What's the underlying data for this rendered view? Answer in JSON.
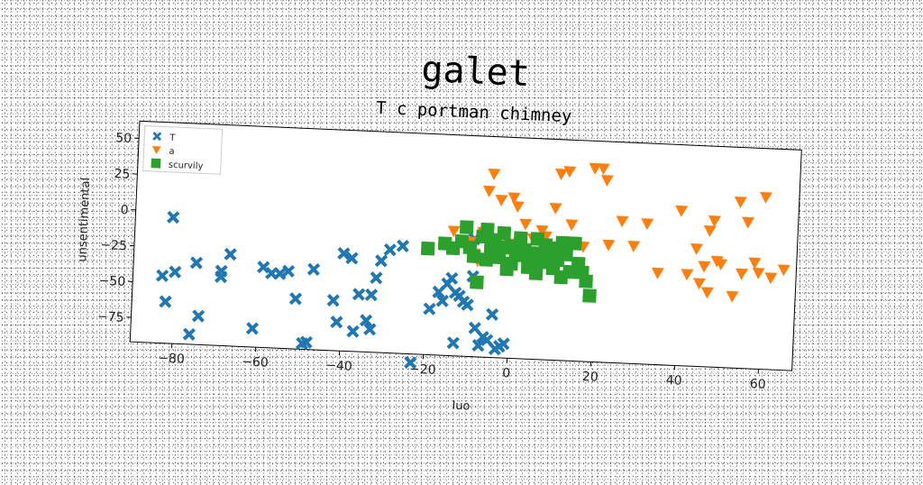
{
  "chart_data": {
    "type": "scatter",
    "title": "galet",
    "subtitle": "T c portman chimney",
    "xlabel": "luo",
    "ylabel": "unsentimental",
    "xlim": [
      -90,
      68
    ],
    "ylim": [
      -92,
      62
    ],
    "xticks": [
      -80,
      -60,
      -40,
      -20,
      0,
      20,
      40,
      60
    ],
    "yticks": [
      50,
      25,
      0,
      -25,
      -50,
      -75
    ],
    "grid": false,
    "legend_position": "top-left",
    "series": [
      {
        "name": "T",
        "marker": "x",
        "color": "#1f77b4",
        "points": [
          [
            -81,
            -4
          ],
          [
            -80,
            -42
          ],
          [
            -83,
            -45
          ],
          [
            -82,
            -63
          ],
          [
            -76,
            -85
          ],
          [
            -74,
            -72
          ],
          [
            -75,
            -35
          ],
          [
            -69,
            -44
          ],
          [
            -69,
            -40
          ],
          [
            -67,
            -28
          ],
          [
            -61,
            -79
          ],
          [
            -59,
            -36
          ],
          [
            -57,
            -40
          ],
          [
            -55,
            -40
          ],
          [
            -53,
            -38
          ],
          [
            -51,
            -57
          ],
          [
            -49,
            -88
          ],
          [
            -48,
            -87
          ],
          [
            -47,
            -36
          ],
          [
            -42,
            -57
          ],
          [
            -41,
            -72
          ],
          [
            -40,
            -24
          ],
          [
            -38,
            -27
          ],
          [
            -37,
            -78
          ],
          [
            -36,
            -52
          ],
          [
            -34,
            -70
          ],
          [
            -33,
            -76
          ],
          [
            -33,
            -52
          ],
          [
            -32,
            -40
          ],
          [
            -31,
            -28
          ],
          [
            -29,
            -20
          ],
          [
            -26,
            -17
          ],
          [
            -23,
            -98
          ],
          [
            -19,
            -60
          ],
          [
            -17,
            -48
          ],
          [
            -16,
            -54
          ],
          [
            -15,
            -42
          ],
          [
            -14,
            -38
          ],
          [
            -13,
            -48
          ],
          [
            -13,
            -83
          ],
          [
            -12,
            -50
          ],
          [
            -11,
            -54
          ],
          [
            -10,
            -56
          ],
          [
            -9,
            -36
          ],
          [
            -8,
            -72
          ],
          [
            -7,
            -84
          ],
          [
            -6,
            -78
          ],
          [
            -5,
            -80
          ],
          [
            -4,
            -62
          ],
          [
            -3,
            -86
          ],
          [
            -2,
            -84
          ],
          [
            -1,
            -82
          ],
          [
            -9,
            -10
          ]
        ]
      },
      {
        "name": "a",
        "marker": "triangle-down",
        "color": "#ff7f0e",
        "points": [
          [
            -14,
            -5
          ],
          [
            -10,
            -12
          ],
          [
            -9,
            -20
          ],
          [
            -8,
            -25
          ],
          [
            -7,
            -5
          ],
          [
            -6,
            24
          ],
          [
            -5,
            36
          ],
          [
            -3,
            18
          ],
          [
            -2,
            -18
          ],
          [
            -1,
            -12
          ],
          [
            0,
            20
          ],
          [
            1,
            14
          ],
          [
            3,
            2
          ],
          [
            4,
            -18
          ],
          [
            5,
            -8
          ],
          [
            7,
            -2
          ],
          [
            8,
            -6
          ],
          [
            10,
            14
          ],
          [
            11,
            38
          ],
          [
            13,
            40
          ],
          [
            14,
            3
          ],
          [
            17,
            -12
          ],
          [
            19,
            43
          ],
          [
            21,
            43
          ],
          [
            22,
            35
          ],
          [
            23,
            -10
          ],
          [
            26,
            7
          ],
          [
            29,
            -10
          ],
          [
            32,
            6
          ],
          [
            35,
            -28
          ],
          [
            40,
            16
          ],
          [
            42,
            -28
          ],
          [
            44,
            -10
          ],
          [
            45,
            -34
          ],
          [
            46,
            -22
          ],
          [
            47,
            3
          ],
          [
            47,
            -40
          ],
          [
            48,
            10
          ],
          [
            49,
            -18
          ],
          [
            50,
            -20
          ],
          [
            53,
            -42
          ],
          [
            54,
            24
          ],
          [
            55,
            -26
          ],
          [
            56,
            10
          ],
          [
            58,
            -18
          ],
          [
            59,
            -25
          ],
          [
            60,
            28
          ],
          [
            62,
            -28
          ],
          [
            65,
            -22
          ]
        ]
      },
      {
        "name": "scurvily",
        "marker": "square",
        "color": "#2ca02c",
        "points": [
          [
            -20,
            -18
          ],
          [
            -16,
            -14
          ],
          [
            -14,
            -17
          ],
          [
            -12,
            -12
          ],
          [
            -11,
            -2
          ],
          [
            -10,
            -16
          ],
          [
            -9,
            -22
          ],
          [
            -8,
            -40
          ],
          [
            -7,
            -8
          ],
          [
            -6,
            -3
          ],
          [
            -5,
            -17
          ],
          [
            -4,
            -10
          ],
          [
            -3,
            -22
          ],
          [
            -2,
            -15
          ],
          [
            -1,
            -30
          ],
          [
            0,
            -26
          ],
          [
            1,
            -20
          ],
          [
            2,
            -12
          ],
          [
            3,
            -16
          ],
          [
            4,
            -28
          ],
          [
            5,
            -18
          ],
          [
            6,
            -8
          ],
          [
            7,
            -24
          ],
          [
            8,
            -20
          ],
          [
            9,
            -14
          ],
          [
            10,
            -28
          ],
          [
            11,
            -22
          ],
          [
            12,
            -34
          ],
          [
            13,
            -18
          ],
          [
            14,
            -30
          ],
          [
            15,
            -10
          ],
          [
            16,
            -24
          ],
          [
            17,
            -30
          ],
          [
            18,
            -36
          ],
          [
            19,
            -46
          ],
          [
            -4,
            -20
          ],
          [
            -2,
            -5
          ],
          [
            0,
            -14
          ],
          [
            2,
            -8
          ],
          [
            4,
            -22
          ],
          [
            6,
            -32
          ],
          [
            8,
            -12
          ],
          [
            10,
            -18
          ],
          [
            12,
            -10
          ],
          [
            -6,
            -24
          ]
        ]
      }
    ]
  }
}
